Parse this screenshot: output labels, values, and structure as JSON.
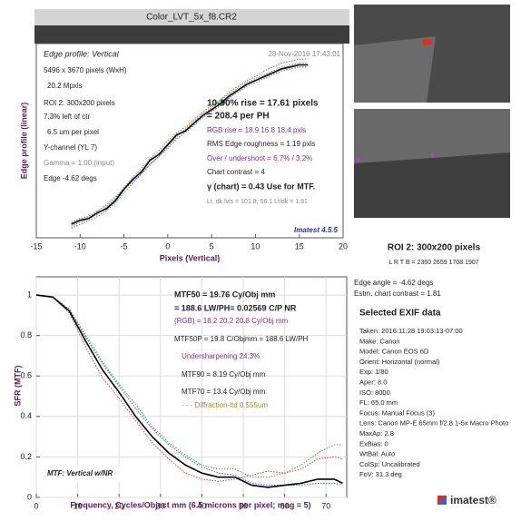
{
  "window_title": "Color_LVT_5x_f8.CR2",
  "chart_data": [
    {
      "type": "line",
      "title": "Edge profile: Vertical",
      "date": "28-Nov-2016 17:43:01",
      "x_label": "Pixels (Vertical)",
      "y_label": "Edge profile (linear)",
      "xlim": [
        -15,
        20
      ],
      "xticks": [
        -15,
        -10,
        -5,
        0,
        5,
        10,
        15,
        20
      ],
      "ylim": [
        0,
        1
      ],
      "grid": false,
      "x": [
        -11,
        -10,
        -9,
        -8,
        -7,
        -6,
        -5,
        -4,
        -3,
        -2,
        -1,
        0,
        1,
        2,
        3,
        4,
        5,
        6,
        7,
        8,
        9,
        10,
        11,
        12,
        13,
        14,
        15,
        16
      ],
      "series": [
        {
          "color": "#e04040",
          "line_style": "dotted",
          "values": [
            0.05,
            0.07,
            0.09,
            0.11,
            0.14,
            0.18,
            0.23,
            0.28,
            0.33,
            0.38,
            0.42,
            0.47,
            0.52,
            0.56,
            0.6,
            0.64,
            0.67,
            0.71,
            0.75,
            0.78,
            0.81,
            0.83,
            0.86,
            0.88,
            0.9,
            0.91,
            0.92,
            0.92
          ]
        },
        {
          "color": "#30b030",
          "line_style": "dotted",
          "values": [
            0.06,
            0.08,
            0.1,
            0.12,
            0.16,
            0.2,
            0.26,
            0.31,
            0.36,
            0.41,
            0.45,
            0.5,
            0.54,
            0.57,
            0.61,
            0.65,
            0.68,
            0.71,
            0.74,
            0.77,
            0.8,
            0.82,
            0.84,
            0.86,
            0.88,
            0.89,
            0.9,
            0.9
          ]
        },
        {
          "color": "#4060e0",
          "line_style": "dotted",
          "values": [
            0.08,
            0.1,
            0.11,
            0.14,
            0.17,
            0.21,
            0.25,
            0.29,
            0.33,
            0.38,
            0.42,
            0.46,
            0.51,
            0.54,
            0.58,
            0.62,
            0.65,
            0.68,
            0.72,
            0.75,
            0.78,
            0.8,
            0.82,
            0.84,
            0.86,
            0.87,
            0.88,
            0.88
          ]
        },
        {
          "color": "#000000",
          "line_style": "solid",
          "values": [
            0.07,
            0.09,
            0.1,
            0.13,
            0.15,
            0.19,
            0.25,
            0.3,
            0.34,
            0.4,
            0.43,
            0.48,
            0.53,
            0.55,
            0.59,
            0.63,
            0.66,
            0.69,
            0.73,
            0.76,
            0.79,
            0.81,
            0.83,
            0.85,
            0.87,
            0.88,
            0.89,
            0.89
          ]
        }
      ],
      "annotations": [
        "5496 x 3670 pixels (WxH)",
        "20.2 Mpxls",
        "ROI 2:  300x200 pixels",
        "7.3% left of ctr",
        "6.5 um per pixel",
        "Y-channel  (YL 7)",
        "Gamma = 1.00 (input)",
        "Edge  -4.62 degs",
        "10-90% rise = 17.61 pixels",
        "= 208.4 per PH",
        "RGB rise =   18.9   16.8   18.4 pxls",
        "RMS Edge roughness =   1.19 pxls",
        "Over / undershoot = 6.7% /  3.2%",
        "Chart contrast = 4",
        "γ (chart) =  0.43  Use for MTF.",
        "Lt, dk lvls =  101.8,   56.1   Lt/dk =   1.81",
        "Imatest 4.5.5"
      ]
    },
    {
      "type": "line",
      "title": "MTF: Vertical w/NR",
      "x_label": "Frequency, Cycles/Object mm  (6.5 microns per pixel;  mag = 5)",
      "y_label": "SFR (MTF)",
      "xlim": [
        0,
        75
      ],
      "xticks": [
        0,
        10,
        20,
        30,
        40,
        50,
        60,
        70
      ],
      "ylim": [
        0,
        1.09
      ],
      "yticks": [
        0,
        0.2,
        0.4,
        0.6,
        0.8,
        1
      ],
      "grid": true,
      "x": [
        0,
        4,
        8,
        12,
        16,
        20,
        24,
        28,
        32,
        36,
        40,
        44,
        48,
        52,
        56,
        60,
        64,
        68,
        72,
        74
      ],
      "series": [
        {
          "color": "#e04040",
          "line_style": "dotted",
          "values": [
            1.0,
            0.99,
            0.91,
            0.74,
            0.59,
            0.49,
            0.38,
            0.27,
            0.19,
            0.12,
            0.09,
            0.08,
            0.09,
            0.11,
            0.13,
            0.12,
            0.14,
            0.19,
            0.2,
            0.19
          ]
        },
        {
          "color": "#30b030",
          "line_style": "dotted",
          "values": [
            1.0,
            0.99,
            0.93,
            0.8,
            0.67,
            0.56,
            0.46,
            0.35,
            0.27,
            0.21,
            0.16,
            0.14,
            0.14,
            0.1,
            0.1,
            0.12,
            0.16,
            0.22,
            0.26,
            0.26
          ]
        },
        {
          "color": "#4060e0",
          "line_style": "dotted",
          "values": [
            1.0,
            0.99,
            0.93,
            0.79,
            0.66,
            0.55,
            0.44,
            0.34,
            0.26,
            0.2,
            0.15,
            0.12,
            0.11,
            0.07,
            0.06,
            0.06,
            0.06,
            0.07,
            0.07,
            0.06
          ]
        },
        {
          "color": "#000000",
          "line_style": "solid",
          "values": [
            1.0,
            0.99,
            0.92,
            0.77,
            0.63,
            0.52,
            0.4,
            0.3,
            0.22,
            0.16,
            0.12,
            0.1,
            0.1,
            0.06,
            0.05,
            0.06,
            0.07,
            0.09,
            0.09,
            0.07
          ]
        }
      ],
      "annotations": [
        "MTF50 = 19.76 Cy/Obj mm",
        "= 188.6 LW/PH= 0.02569 C/P  NR",
        "(RGB) = 18.2  20.2  20.8 Cy/Obj mm",
        "MTF50P = 19.8 C/Objmm = 188.6 LW/PH",
        "Undersharpening 24.3%",
        "MTF90 = 8.19 Cy/Obj mm",
        "MTF70 = 13.4 Cy/Obj mm",
        "- - - Diffraction-ltd  0.555um"
      ]
    }
  ],
  "roi": {
    "caption": "ROI 2:  300x200 pixels",
    "bounds": "L R  T B = 2360 2659  1708 1907",
    "edge_angle": "Edge angle = -4.62 degs",
    "contrast": "Estm. chart contrast = 1.81"
  },
  "exif": {
    "title": "Selected EXIF data",
    "lines": [
      "Taken: 2016:11:28 19:03:13-07:00",
      "Make: Canon",
      "Model: Canon EOS 6D",
      "Orient: Horizontal (normal)",
      "Exp:  1/80",
      "Aper:  8.0",
      "ISO:  8000",
      "FL:  65.0 mm",
      "Focus:  Manual Focus (3)",
      "Lens:  Canon MP-E 65mm f/2.8 1-5x Macro Photo",
      "MaxAp: 2.8",
      "ExBias: 0",
      "WtBal: Auto",
      "ColSp: Uncalibrated",
      "FoV:  31.3 deg"
    ]
  },
  "logo": "imatest®"
}
